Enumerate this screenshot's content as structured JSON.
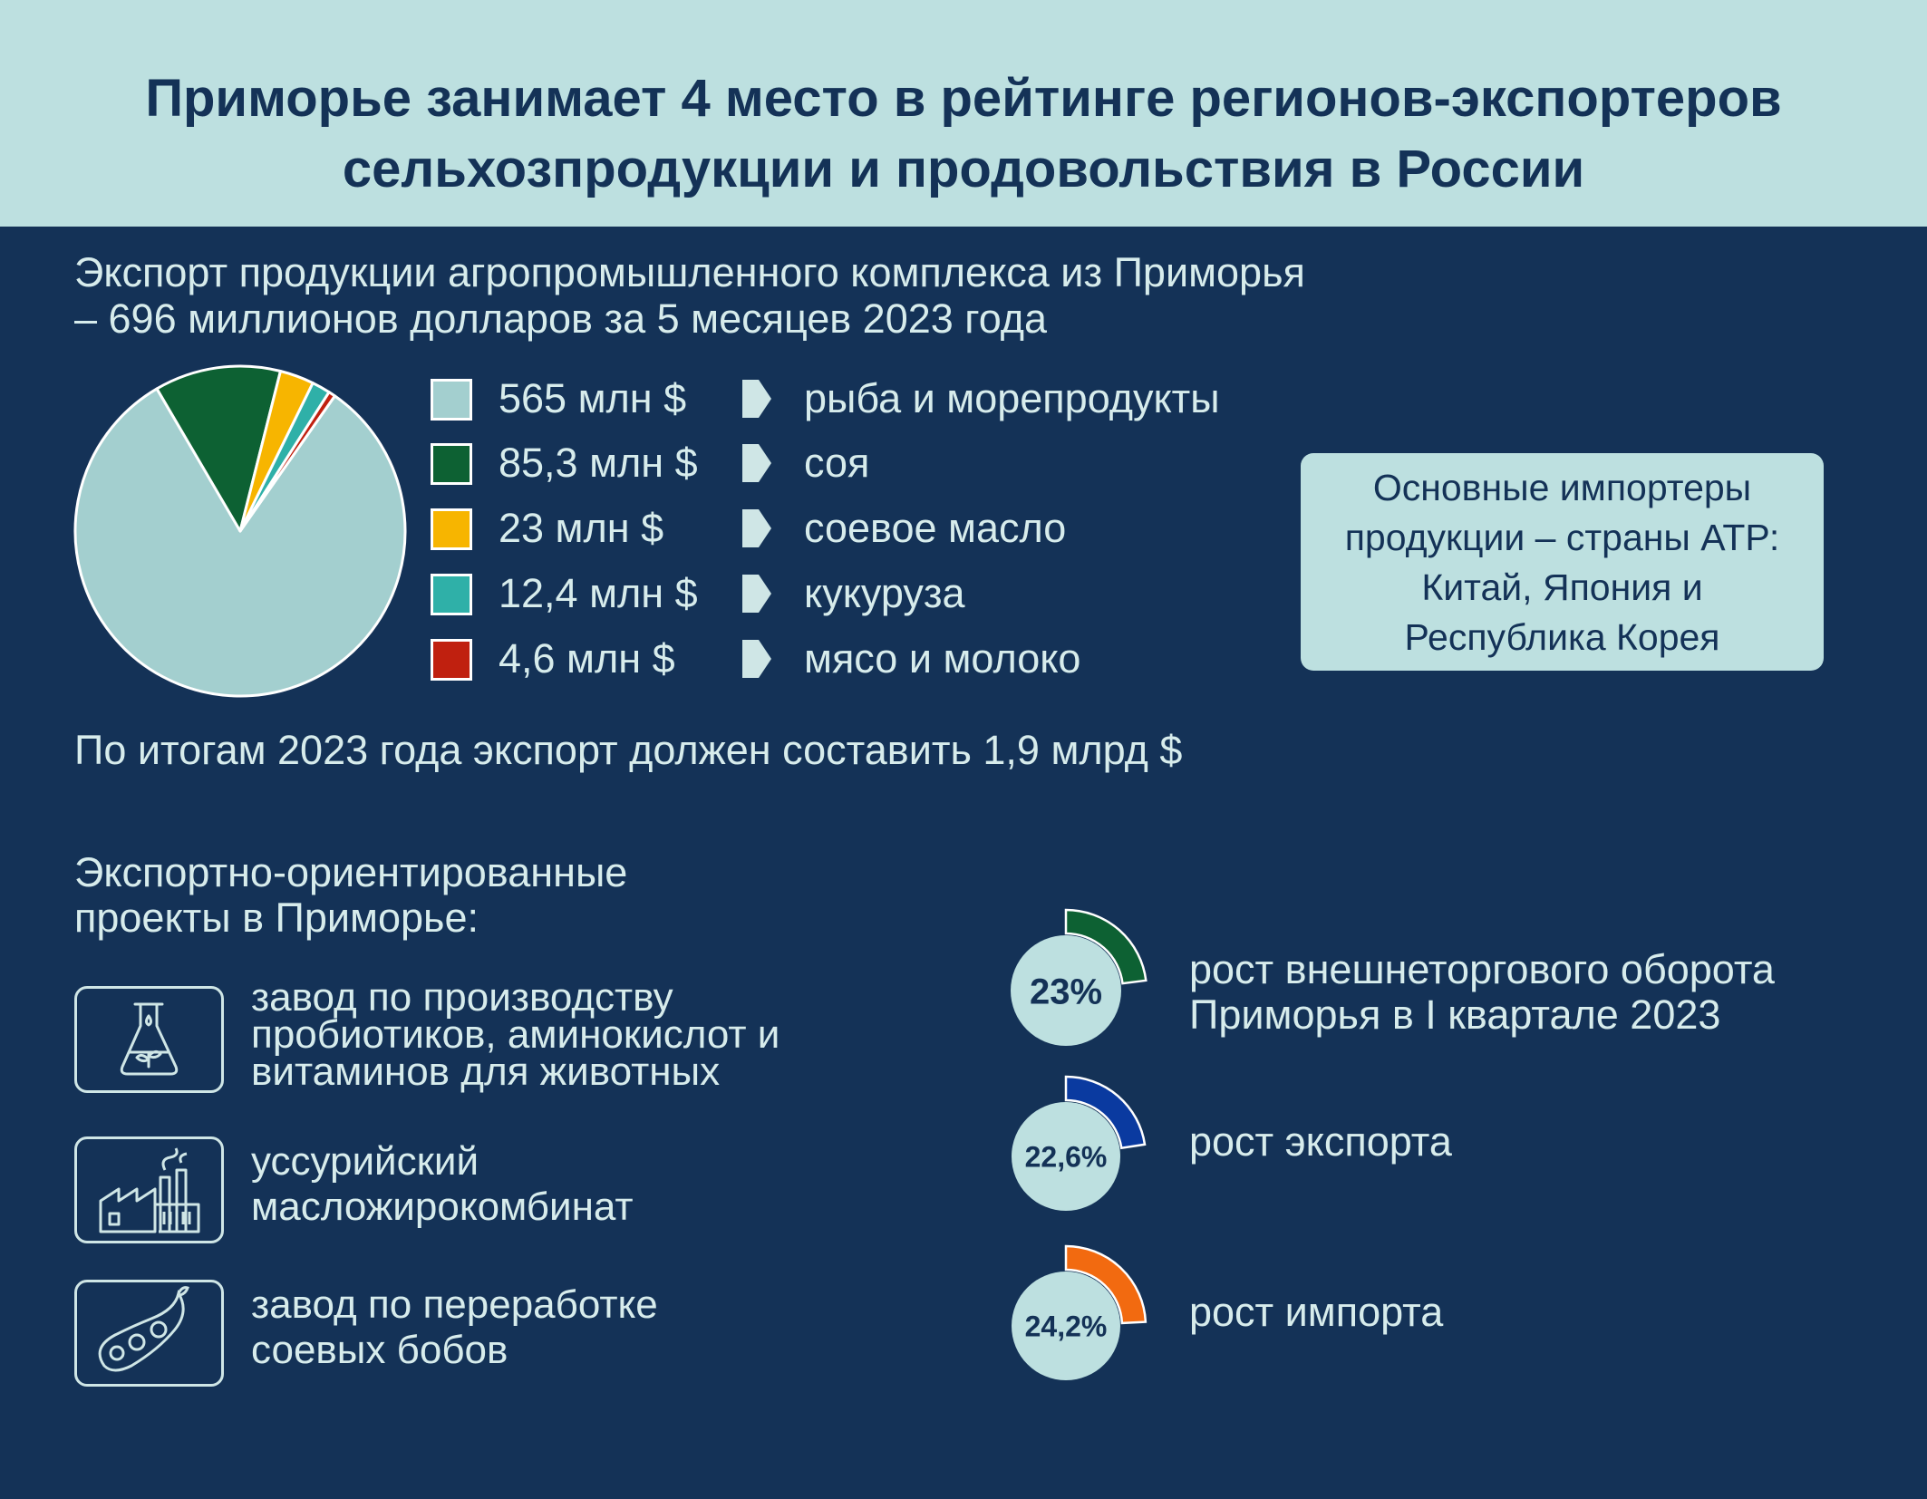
{
  "header": {
    "title_line1": "Приморье занимает 4 место в рейтинге регионов-экспортеров",
    "title_line2": "сельхозпродукции и продовольствия в России"
  },
  "subtitle": {
    "line1": "Экспорт продукции агропромышленного комплекса из Приморья",
    "line2": "– 696 миллионов долларов за 5 месяцев 2023 года"
  },
  "chart_data": {
    "type": "pie",
    "title": "",
    "categories": [
      "рыба и морепродукты",
      "соя",
      "соевое масло",
      "кукуруза",
      "мясо и молоко"
    ],
    "values": [
      565,
      85.3,
      23,
      12.4,
      4.6
    ],
    "value_labels": [
      "565 млн $",
      "85,3 млн $",
      "23 млн $",
      "12,4 млн $",
      "4,6 млн $"
    ],
    "colors": [
      "#a3cfcf",
      "#0d6133",
      "#f7b500",
      "#2fb0a8",
      "#c0200f"
    ],
    "legend_position": "right"
  },
  "importers": {
    "line1": "Основные импортеры",
    "line2": "продукции – страны АТР:",
    "line3": "Китай, Япония и",
    "line4": "Республика Корея"
  },
  "forecast": "По итогам 2023 года экспорт должен составить 1,9 млрд $",
  "projects": {
    "title_line1": "Экспортно-ориентированные",
    "title_line2": "проекты в Приморье:",
    "items": [
      {
        "icon": "flask-icon",
        "lines": [
          "завод по производству",
          "пробиотиков, аминокислот и",
          "витаминов для животных"
        ]
      },
      {
        "icon": "factory-icon",
        "lines": [
          "уссурийский",
          "масложирокомбинат"
        ]
      },
      {
        "icon": "soybean-icon",
        "lines": [
          "завод по переработке",
          "соевых бобов"
        ]
      }
    ]
  },
  "stats": [
    {
      "value": 23,
      "label": "23%",
      "lines": [
        "рост внешнеторгового оборота",
        "Приморья в I квартале 2023"
      ],
      "color": "#0d6133"
    },
    {
      "value": 22.6,
      "label": "22,6%",
      "lines": [
        "рост экспорта"
      ],
      "color": "#0a3aa0"
    },
    {
      "value": 24.2,
      "label": "24,2%",
      "lines": [
        "рост импорта"
      ],
      "color": "#f26a10"
    }
  ]
}
